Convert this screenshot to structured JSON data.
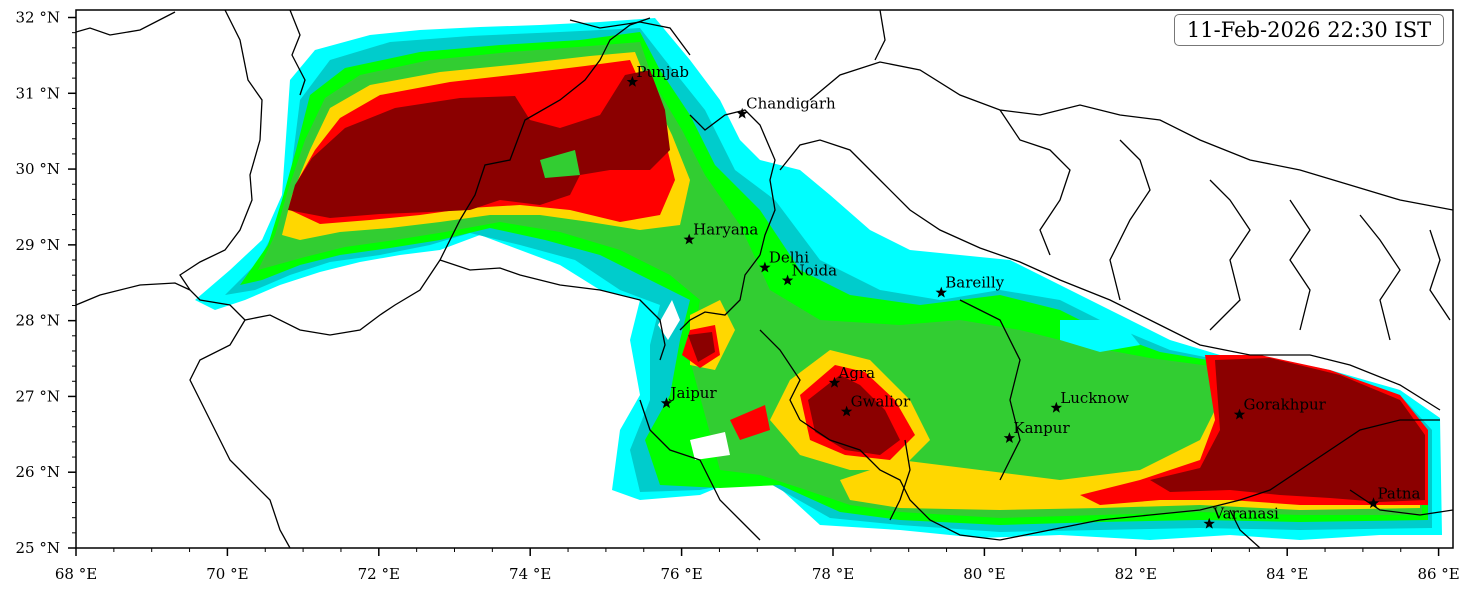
{
  "timestamp": "11-Feb-2026 22:30 IST",
  "x_ticks": [
    "68 °E",
    "70 °E",
    "72 °E",
    "74 °E",
    "76 °E",
    "78 °E",
    "80 °E",
    "82 °E",
    "84 °E",
    "86 °E"
  ],
  "y_ticks": [
    "32 °N",
    "31 °N",
    "30 °N",
    "29 °N",
    "28 °N",
    "27 °N",
    "26 °N",
    "25 °N"
  ],
  "cities": [
    {
      "name": "Punjab",
      "lon": 75.35,
      "lat": 31.15
    },
    {
      "name": "Chandigarh",
      "lon": 76.8,
      "lat": 30.73
    },
    {
      "name": "Haryana",
      "lon": 76.1,
      "lat": 29.07
    },
    {
      "name": "Delhi",
      "lon": 77.1,
      "lat": 28.7
    },
    {
      "name": "Noida",
      "lon": 77.4,
      "lat": 28.53
    },
    {
      "name": "Bareilly",
      "lon": 79.43,
      "lat": 28.37
    },
    {
      "name": "Jaipur",
      "lon": 75.8,
      "lat": 26.91
    },
    {
      "name": "Agra",
      "lon": 78.02,
      "lat": 27.18
    },
    {
      "name": "Gwalior",
      "lon": 78.18,
      "lat": 26.8
    },
    {
      "name": "Lucknow",
      "lon": 80.95,
      "lat": 26.85
    },
    {
      "name": "Kanpur",
      "lon": 80.33,
      "lat": 26.45
    },
    {
      "name": "Gorakhpur",
      "lon": 83.37,
      "lat": 26.76
    },
    {
      "name": "Varanasi",
      "lon": 82.97,
      "lat": 25.32
    },
    {
      "name": "Patna",
      "lon": 85.14,
      "lat": 25.59
    }
  ],
  "colors": {
    "level_1": "#00ffff",
    "level_2": "#00cccc",
    "level_3": "#00ff00",
    "level_4": "#32cd32",
    "level_5": "#ffd700",
    "level_6": "#ff0000",
    "level_7": "#8b0000"
  }
}
